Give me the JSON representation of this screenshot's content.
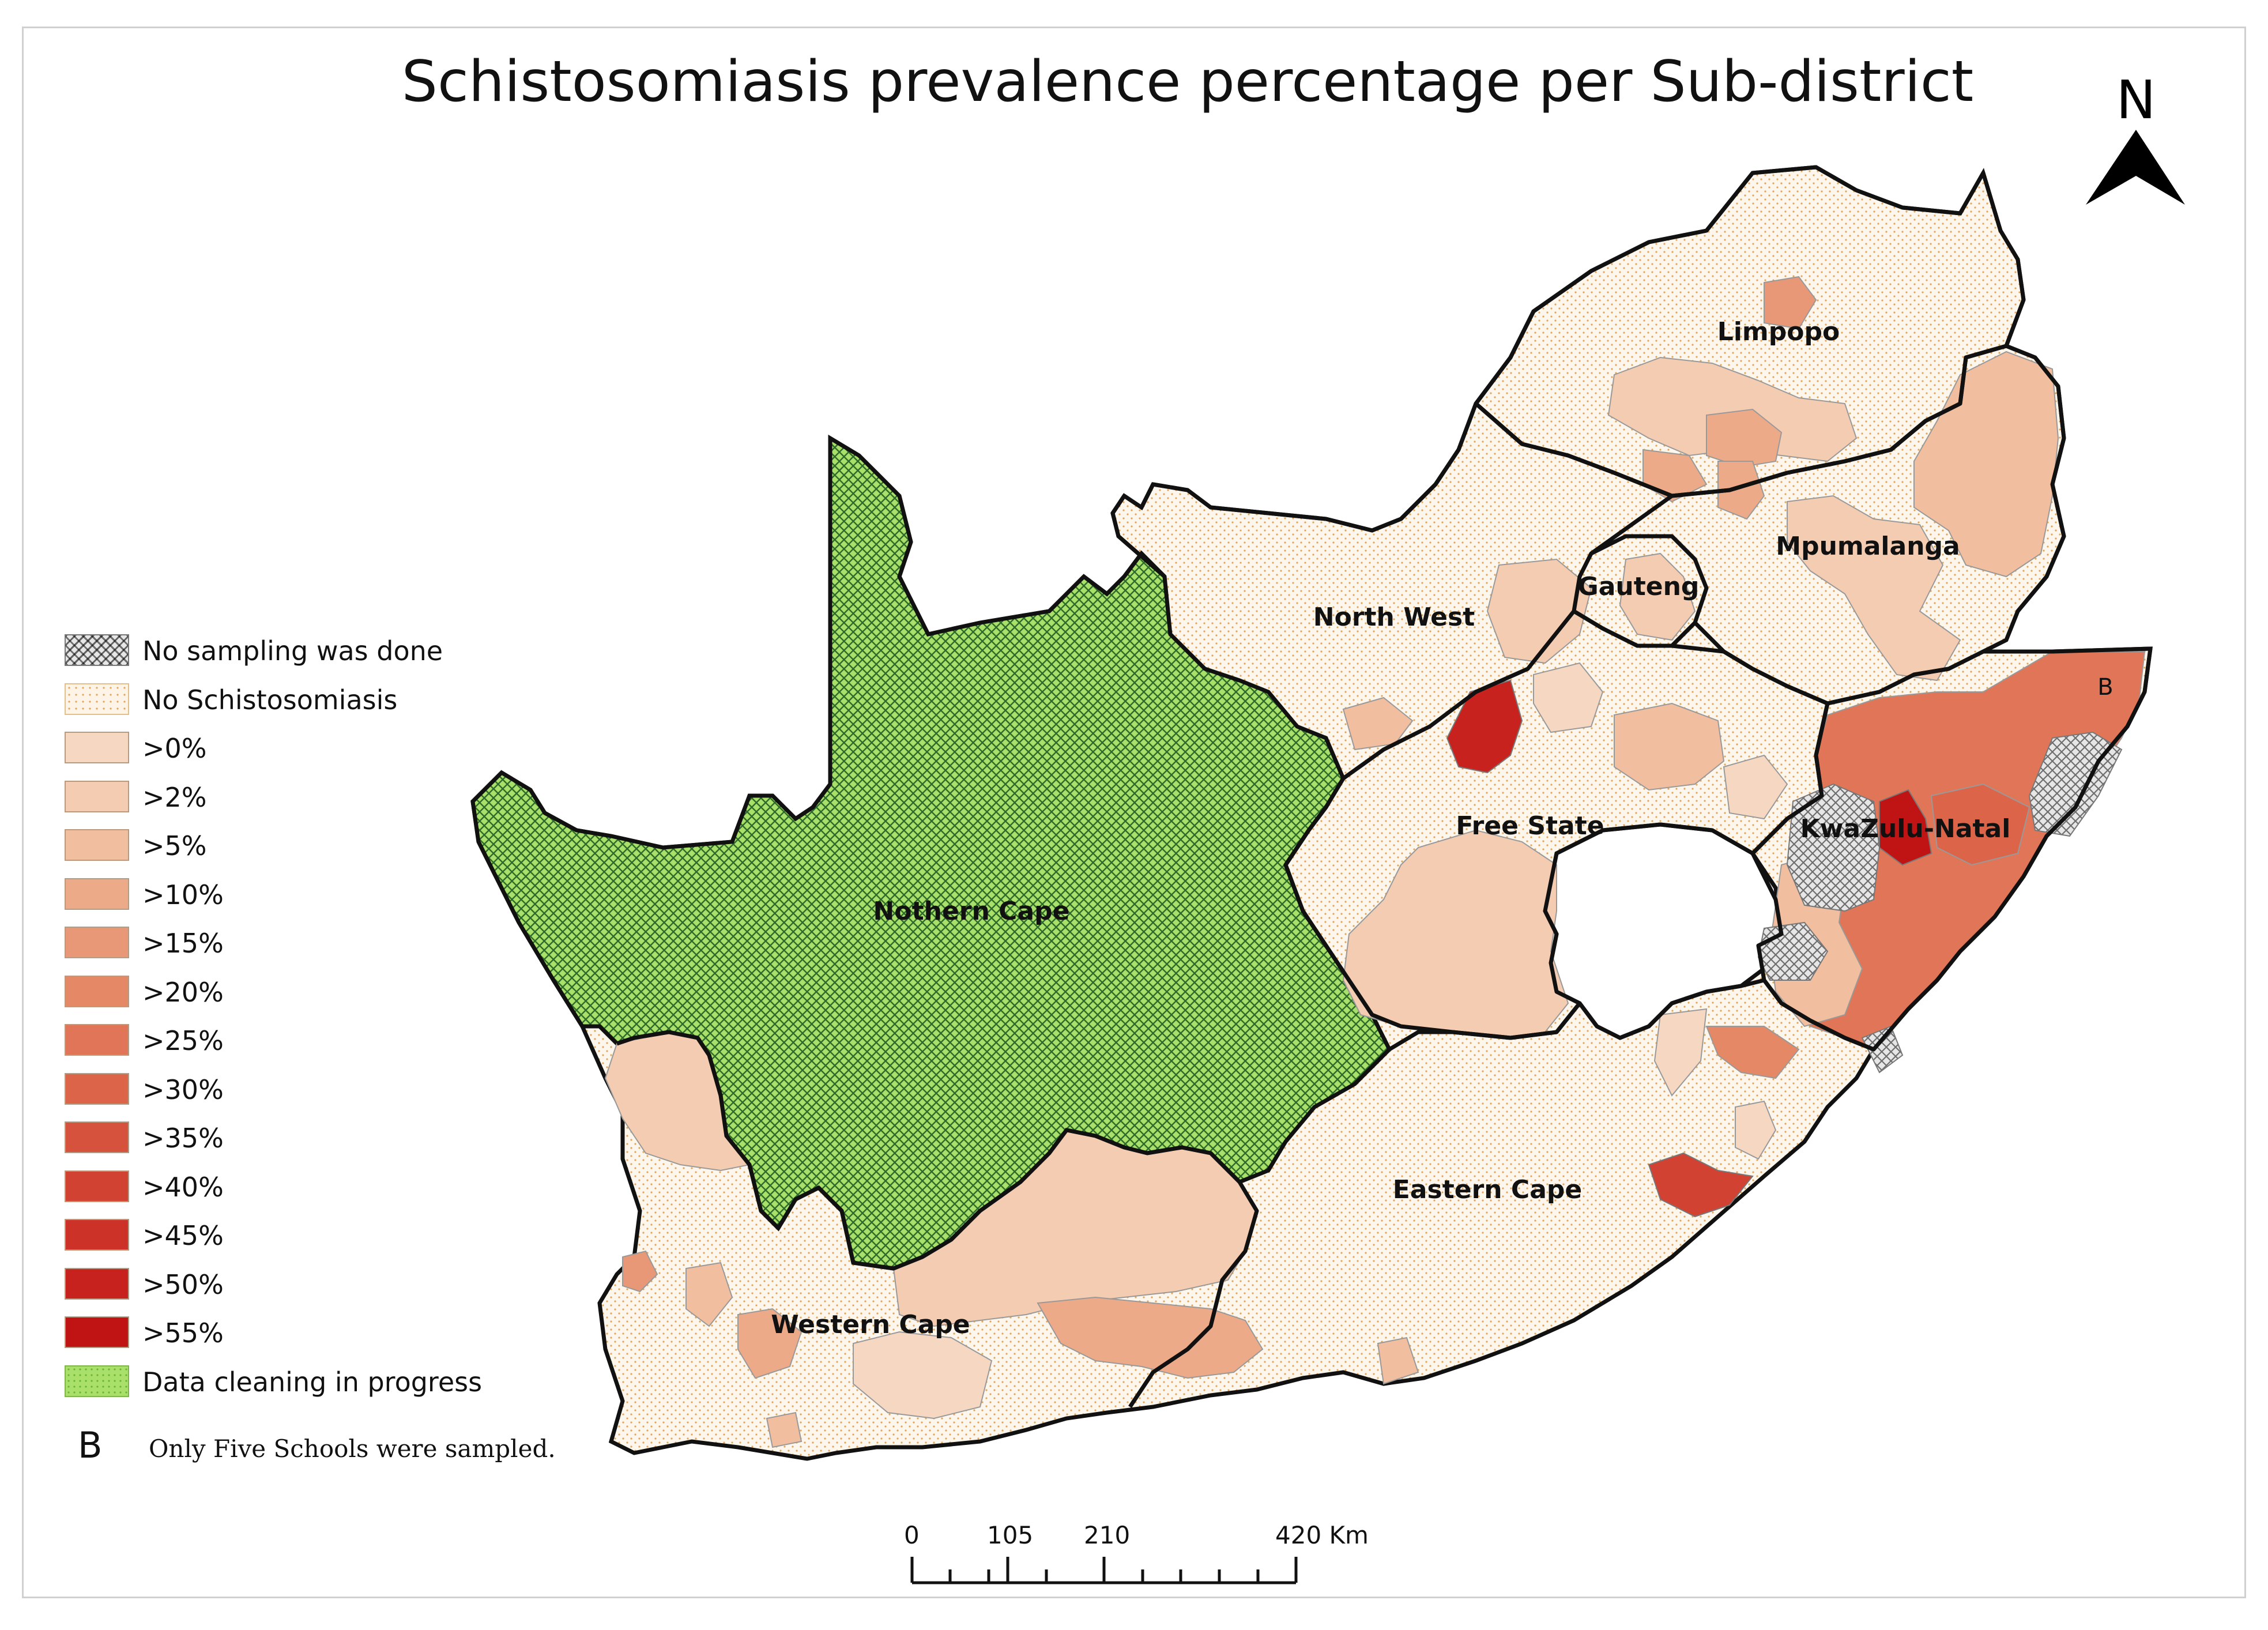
{
  "map": {
    "title": "Schistosomiasis prevalence percentage per Sub-district",
    "north_label": "N",
    "regions": [
      {
        "name": "Limpopo"
      },
      {
        "name": "Mpumalanga"
      },
      {
        "name": "Gauteng"
      },
      {
        "name": "North West"
      },
      {
        "name": "Free State"
      },
      {
        "name": "KwaZulu-Natal"
      },
      {
        "name": "Nothern Cape"
      },
      {
        "name": "Eastern Cape"
      },
      {
        "name": "Western Cape"
      }
    ],
    "marker_b": "B"
  },
  "legend": {
    "items": [
      {
        "label": "No sampling was done",
        "kind": "hatch",
        "color": "#cfcfcf"
      },
      {
        "label": "No Schistosomiasis",
        "kind": "dots",
        "color": "#fdf3e6"
      },
      {
        "label": ">0%",
        "color": "#f6d8c2"
      },
      {
        "label": ">2%",
        "color": "#f4ccb1"
      },
      {
        "label": ">5%",
        "color": "#f1bf9f"
      },
      {
        "label": ">10%",
        "color": "#ecaa88"
      },
      {
        "label": ">15%",
        "color": "#e89876"
      },
      {
        "label": ">20%",
        "color": "#e48866"
      },
      {
        "label": ">25%",
        "color": "#e07657"
      },
      {
        "label": ">30%",
        "color": "#dc6549"
      },
      {
        "label": ">35%",
        "color": "#d7523c"
      },
      {
        "label": ">40%",
        "color": "#d24232"
      },
      {
        "label": ">45%",
        "color": "#cd3228"
      },
      {
        "label": ">50%",
        "color": "#c8221e"
      },
      {
        "label": ">55%",
        "color": "#c01414"
      },
      {
        "label": "Data cleaning in progress",
        "kind": "green",
        "color": "#a8e06a"
      }
    ]
  },
  "note": {
    "letter": "B",
    "text": "Only Five Schools were sampled."
  },
  "scalebar": {
    "ticks": [
      "0",
      "105",
      "210",
      "420 Km"
    ]
  }
}
